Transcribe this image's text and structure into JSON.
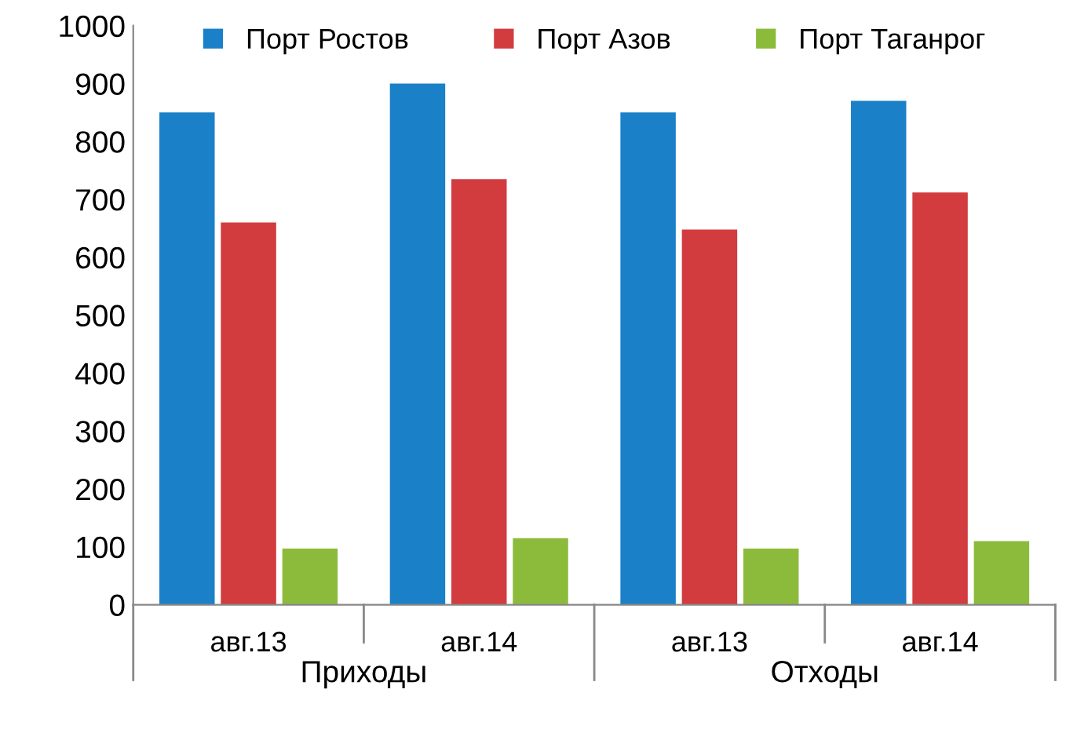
{
  "chart_data": {
    "type": "bar",
    "categories": [
      "авг.13",
      "авг.14",
      "авг.13",
      "авг.14"
    ],
    "series": [
      {
        "name": "Порт Ростов",
        "color": "#1a80c8",
        "values": [
          850,
          900,
          850,
          870
        ]
      },
      {
        "name": "Порт Азов",
        "color": "#d23c3f",
        "values": [
          660,
          735,
          648,
          712
        ]
      },
      {
        "name": "Порт Таганрог",
        "color": "#8cbb3c",
        "values": [
          97,
          115,
          97,
          110
        ]
      }
    ],
    "ylim": [
      0,
      1000
    ],
    "yticks": [
      0,
      100,
      200,
      300,
      400,
      500,
      600,
      700,
      800,
      900,
      1000
    ],
    "annotations": [
      "Приходы",
      "Отходы"
    ],
    "legend": "top",
    "grid": false
  }
}
